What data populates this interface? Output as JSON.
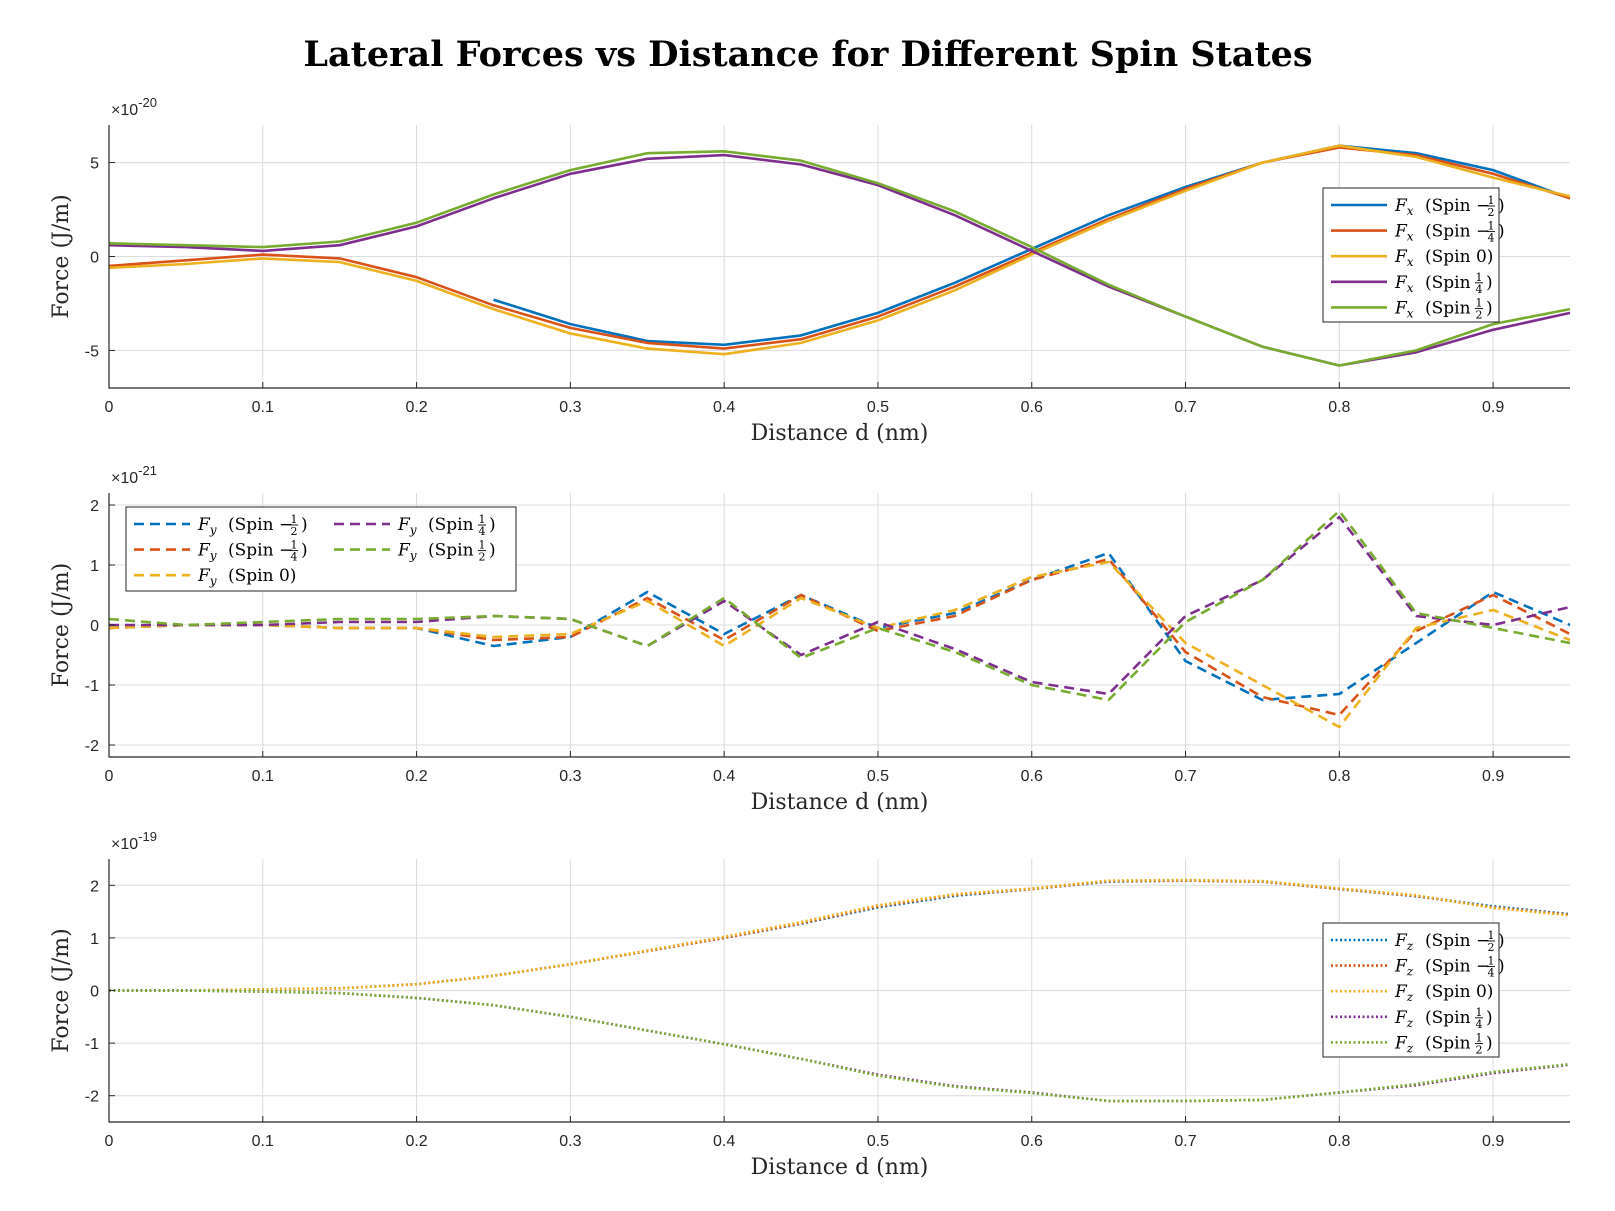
{
  "title": "Lateral Forces vs Distance for Different Spin States",
  "colors": {
    "spin_m_half": "#0072BD",
    "spin_m_quarter": "#D95319",
    "spin_0": "#EDB120",
    "spin_quarter": "#7E2F8E",
    "spin_half": "#77AC30"
  },
  "chart_data": [
    {
      "type": "line",
      "line_style": "solid",
      "xlabel": "Distance d (nm)",
      "ylabel": "Force (J/m)",
      "exponent_label": "×10",
      "exponent_power": "-20",
      "xlim": [
        0,
        0.95
      ],
      "ylim": [
        -7,
        7
      ],
      "xticks": [
        "0",
        "0.1",
        "0.2",
        "0.3",
        "0.4",
        "0.5",
        "0.6",
        "0.7",
        "0.8",
        "0.9"
      ],
      "yticks": [
        "5",
        "0",
        "-5"
      ],
      "ytick_values": [
        5,
        0,
        -5
      ],
      "grid": true,
      "legend_position": "right",
      "x": [
        0,
        0.05,
        0.1,
        0.15,
        0.2,
        0.25,
        0.3,
        0.35,
        0.4,
        0.45,
        0.5,
        0.55,
        0.6,
        0.65,
        0.7,
        0.75,
        0.8,
        0.85,
        0.9,
        0.95
      ],
      "series": [
        {
          "name": "Fx",
          "spin": "Spin -1/2",
          "sign": "−",
          "num": "1",
          "den": "2",
          "color_key": "spin_m_half",
          "values": [
            null,
            null,
            null,
            null,
            null,
            -2.3,
            -3.6,
            -4.5,
            -4.7,
            -4.2,
            -3.0,
            -1.4,
            0.4,
            2.2,
            3.7,
            5.0,
            5.9,
            5.5,
            4.6,
            3.1
          ]
        },
        {
          "name": "Fx",
          "spin": "Spin -1/4",
          "sign": "−",
          "num": "1",
          "den": "4",
          "color_key": "spin_m_quarter",
          "values": [
            -0.5,
            -0.2,
            0.1,
            -0.1,
            -1.1,
            -2.6,
            -3.8,
            -4.6,
            -4.9,
            -4.4,
            -3.2,
            -1.6,
            0.2,
            2.0,
            3.6,
            5.0,
            5.8,
            5.4,
            4.4,
            3.1
          ]
        },
        {
          "name": "Fx",
          "spin": "Spin 0",
          "sign": "",
          "num": "",
          "den": "",
          "label": "Spin 0",
          "color_key": "spin_0",
          "values": [
            -0.6,
            -0.4,
            -0.1,
            -0.3,
            -1.3,
            -2.8,
            -4.1,
            -4.9,
            -5.2,
            -4.6,
            -3.4,
            -1.8,
            0.1,
            1.9,
            3.5,
            5.0,
            5.9,
            5.3,
            4.2,
            3.2
          ]
        },
        {
          "name": "Fx",
          "spin": "Spin 1/4",
          "sign": "",
          "num": "1",
          "den": "4",
          "color_key": "spin_quarter",
          "values": [
            0.6,
            0.5,
            0.3,
            0.6,
            1.6,
            3.1,
            4.4,
            5.2,
            5.4,
            4.9,
            3.8,
            2.2,
            0.3,
            -1.6,
            -3.2,
            -4.8,
            -5.8,
            -5.1,
            -3.9,
            -3.0
          ]
        },
        {
          "name": "Fx",
          "spin": "Spin 1/2",
          "sign": "",
          "num": "1",
          "den": "2",
          "color_key": "spin_half",
          "values": [
            0.7,
            0.6,
            0.5,
            0.8,
            1.8,
            3.3,
            4.6,
            5.5,
            5.6,
            5.1,
            3.9,
            2.4,
            0.5,
            -1.5,
            -3.2,
            -4.8,
            -5.8,
            -5.0,
            -3.6,
            -2.8
          ]
        }
      ]
    },
    {
      "type": "line",
      "line_style": "dashed",
      "xlabel": "Distance d (nm)",
      "ylabel": "Force (J/m)",
      "exponent_label": "×10",
      "exponent_power": "-21",
      "xlim": [
        0,
        0.95
      ],
      "ylim": [
        -2.2,
        2.2
      ],
      "xticks": [
        "0",
        "0.1",
        "0.2",
        "0.3",
        "0.4",
        "0.5",
        "0.6",
        "0.7",
        "0.8",
        "0.9"
      ],
      "yticks": [
        "2",
        "1",
        "0",
        "-1",
        "-2"
      ],
      "ytick_values": [
        2,
        1,
        0,
        -1,
        -2
      ],
      "grid": true,
      "legend_position": "top-left",
      "x": [
        0,
        0.05,
        0.1,
        0.15,
        0.2,
        0.25,
        0.3,
        0.35,
        0.4,
        0.45,
        0.5,
        0.55,
        0.6,
        0.65,
        0.7,
        0.75,
        0.8,
        0.85,
        0.9,
        0.95
      ],
      "series": [
        {
          "name": "Fy",
          "spin": "Spin -1/2",
          "sign": "−",
          "num": "1",
          "den": "2",
          "color_key": "spin_m_half",
          "values": [
            -0.05,
            0.0,
            0.0,
            -0.05,
            -0.05,
            -0.35,
            -0.2,
            0.55,
            -0.15,
            0.5,
            -0.05,
            0.2,
            0.75,
            1.2,
            -0.6,
            -1.25,
            -1.15,
            -0.3,
            0.55,
            0.0
          ]
        },
        {
          "name": "Fy",
          "spin": "Spin -1/4",
          "sign": "−",
          "num": "1",
          "den": "4",
          "color_key": "spin_m_quarter",
          "values": [
            -0.05,
            0.0,
            0.0,
            -0.05,
            -0.05,
            -0.25,
            -0.2,
            0.45,
            -0.25,
            0.5,
            -0.1,
            0.15,
            0.75,
            1.1,
            -0.45,
            -1.2,
            -1.5,
            -0.1,
            0.5,
            -0.15
          ]
        },
        {
          "name": "Fy",
          "spin": "Spin 0",
          "sign": "",
          "num": "",
          "den": "",
          "label": "Spin 0",
          "color_key": "spin_0",
          "values": [
            -0.05,
            0.0,
            0.0,
            -0.05,
            -0.05,
            -0.2,
            -0.15,
            0.4,
            -0.35,
            0.45,
            -0.05,
            0.25,
            0.8,
            1.05,
            -0.3,
            -1.0,
            -1.7,
            -0.05,
            0.25,
            -0.25
          ]
        },
        {
          "name": "Fy",
          "spin": "Spin 1/4",
          "sign": "",
          "num": "1",
          "den": "4",
          "color_key": "spin_quarter",
          "values": [
            0.0,
            0.0,
            0.0,
            0.05,
            0.05,
            0.15,
            0.1,
            -0.35,
            0.4,
            -0.5,
            0.05,
            -0.4,
            -0.95,
            -1.15,
            0.15,
            0.75,
            1.8,
            0.15,
            0.0,
            0.3
          ]
        },
        {
          "name": "Fy",
          "spin": "Spin 1/2",
          "sign": "",
          "num": "1",
          "den": "2",
          "color_key": "spin_half",
          "values": [
            0.1,
            0.0,
            0.05,
            0.1,
            0.1,
            0.15,
            0.1,
            -0.35,
            0.45,
            -0.55,
            -0.05,
            -0.45,
            -1.0,
            -1.25,
            0.05,
            0.75,
            1.9,
            0.2,
            -0.05,
            -0.3
          ]
        }
      ]
    },
    {
      "type": "line",
      "line_style": "dotted",
      "xlabel": "Distance d (nm)",
      "ylabel": "Force (J/m)",
      "exponent_label": "×10",
      "exponent_power": "-19",
      "xlim": [
        0,
        0.95
      ],
      "ylim": [
        -2.5,
        2.5
      ],
      "xticks": [
        "0",
        "0.1",
        "0.2",
        "0.3",
        "0.4",
        "0.5",
        "0.6",
        "0.7",
        "0.8",
        "0.9"
      ],
      "yticks": [
        "2",
        "1",
        "0",
        "-1",
        "-2"
      ],
      "ytick_values": [
        2,
        1,
        0,
        -1,
        -2
      ],
      "grid": true,
      "legend_position": "right",
      "x": [
        0,
        0.05,
        0.1,
        0.15,
        0.2,
        0.25,
        0.3,
        0.35,
        0.4,
        0.45,
        0.5,
        0.55,
        0.6,
        0.65,
        0.7,
        0.75,
        0.8,
        0.85,
        0.9,
        0.95
      ],
      "series": [
        {
          "name": "Fz",
          "spin": "Spin -1/2",
          "sign": "−",
          "num": "1",
          "den": "2",
          "color_key": "spin_m_half",
          "values": [
            0.0,
            0.0,
            0.02,
            0.04,
            0.12,
            0.28,
            0.5,
            0.75,
            1.0,
            1.27,
            1.58,
            1.8,
            1.93,
            2.07,
            2.09,
            2.07,
            1.93,
            1.79,
            1.6,
            1.45
          ]
        },
        {
          "name": "Fz",
          "spin": "Spin -1/4",
          "sign": "−",
          "num": "1",
          "den": "4",
          "color_key": "spin_m_quarter",
          "values": [
            0.0,
            0.0,
            0.02,
            0.04,
            0.12,
            0.28,
            0.5,
            0.75,
            1.0,
            1.28,
            1.6,
            1.82,
            1.93,
            2.08,
            2.09,
            2.07,
            1.93,
            1.8,
            1.58,
            1.44
          ]
        },
        {
          "name": "Fz",
          "spin": "Spin 0",
          "sign": "",
          "num": "",
          "den": "",
          "label": "Spin 0",
          "color_key": "spin_0",
          "values": [
            0.0,
            0.0,
            0.02,
            0.04,
            0.12,
            0.28,
            0.5,
            0.76,
            1.02,
            1.3,
            1.62,
            1.83,
            1.94,
            2.09,
            2.1,
            2.08,
            1.94,
            1.81,
            1.57,
            1.43
          ]
        },
        {
          "name": "Fz",
          "spin": "Spin 1/4",
          "sign": "",
          "num": "1",
          "den": "4",
          "color_key": "spin_quarter",
          "values": [
            0.0,
            0.0,
            -0.02,
            -0.05,
            -0.14,
            -0.28,
            -0.5,
            -0.76,
            -1.02,
            -1.3,
            -1.6,
            -1.82,
            -1.94,
            -2.1,
            -2.1,
            -2.08,
            -1.94,
            -1.8,
            -1.57,
            -1.41
          ]
        },
        {
          "name": "Fz",
          "spin": "Spin 1/2",
          "sign": "",
          "num": "1",
          "den": "2",
          "color_key": "spin_half",
          "values": [
            0.0,
            0.0,
            -0.02,
            -0.05,
            -0.14,
            -0.28,
            -0.5,
            -0.76,
            -1.02,
            -1.3,
            -1.62,
            -1.83,
            -1.95,
            -2.1,
            -2.1,
            -2.08,
            -1.94,
            -1.78,
            -1.55,
            -1.4
          ]
        }
      ]
    }
  ]
}
